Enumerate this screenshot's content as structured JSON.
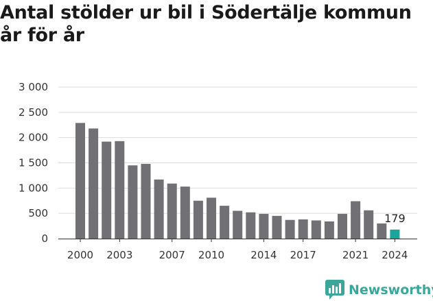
{
  "title_line1": "Antal stölder ur bil i Södertälje kommun",
  "title_line2": "år för år",
  "brand": "Newsworthy",
  "colors": {
    "bar": "#717075",
    "highlight": "#1aa59a",
    "grid": "#dddddd",
    "brand": "#3aa79a"
  },
  "chart_data": {
    "type": "bar",
    "title": "Antal stölder ur bil i Södertälje kommun år för år",
    "xlabel": "",
    "ylabel": "",
    "categories": [
      "2000",
      "2001",
      "2002",
      "2003",
      "2004",
      "2005",
      "2006",
      "2007",
      "2008",
      "2009",
      "2010",
      "2011",
      "2012",
      "2013",
      "2014",
      "2015",
      "2016",
      "2017",
      "2018",
      "2019",
      "2020",
      "2021",
      "2022",
      "2023",
      "2024"
    ],
    "values": [
      2290,
      2180,
      1920,
      1930,
      1450,
      1480,
      1170,
      1090,
      1030,
      750,
      810,
      650,
      550,
      520,
      490,
      450,
      370,
      380,
      360,
      340,
      490,
      740,
      560,
      300,
      179
    ],
    "highlight_index": 24,
    "ylim": [
      0,
      3000
    ],
    "yticks": [
      0,
      500,
      1000,
      1500,
      2000,
      2500,
      3000
    ],
    "ytick_labels": [
      "0",
      "500",
      "1 000",
      "1 500",
      "2 000",
      "2 500",
      "3 000"
    ],
    "xtick_labels": [
      "2000",
      "2003",
      "2007",
      "2010",
      "2014",
      "2017",
      "2021",
      "2024"
    ],
    "annotation": "179",
    "grid": true,
    "legend": "none"
  }
}
